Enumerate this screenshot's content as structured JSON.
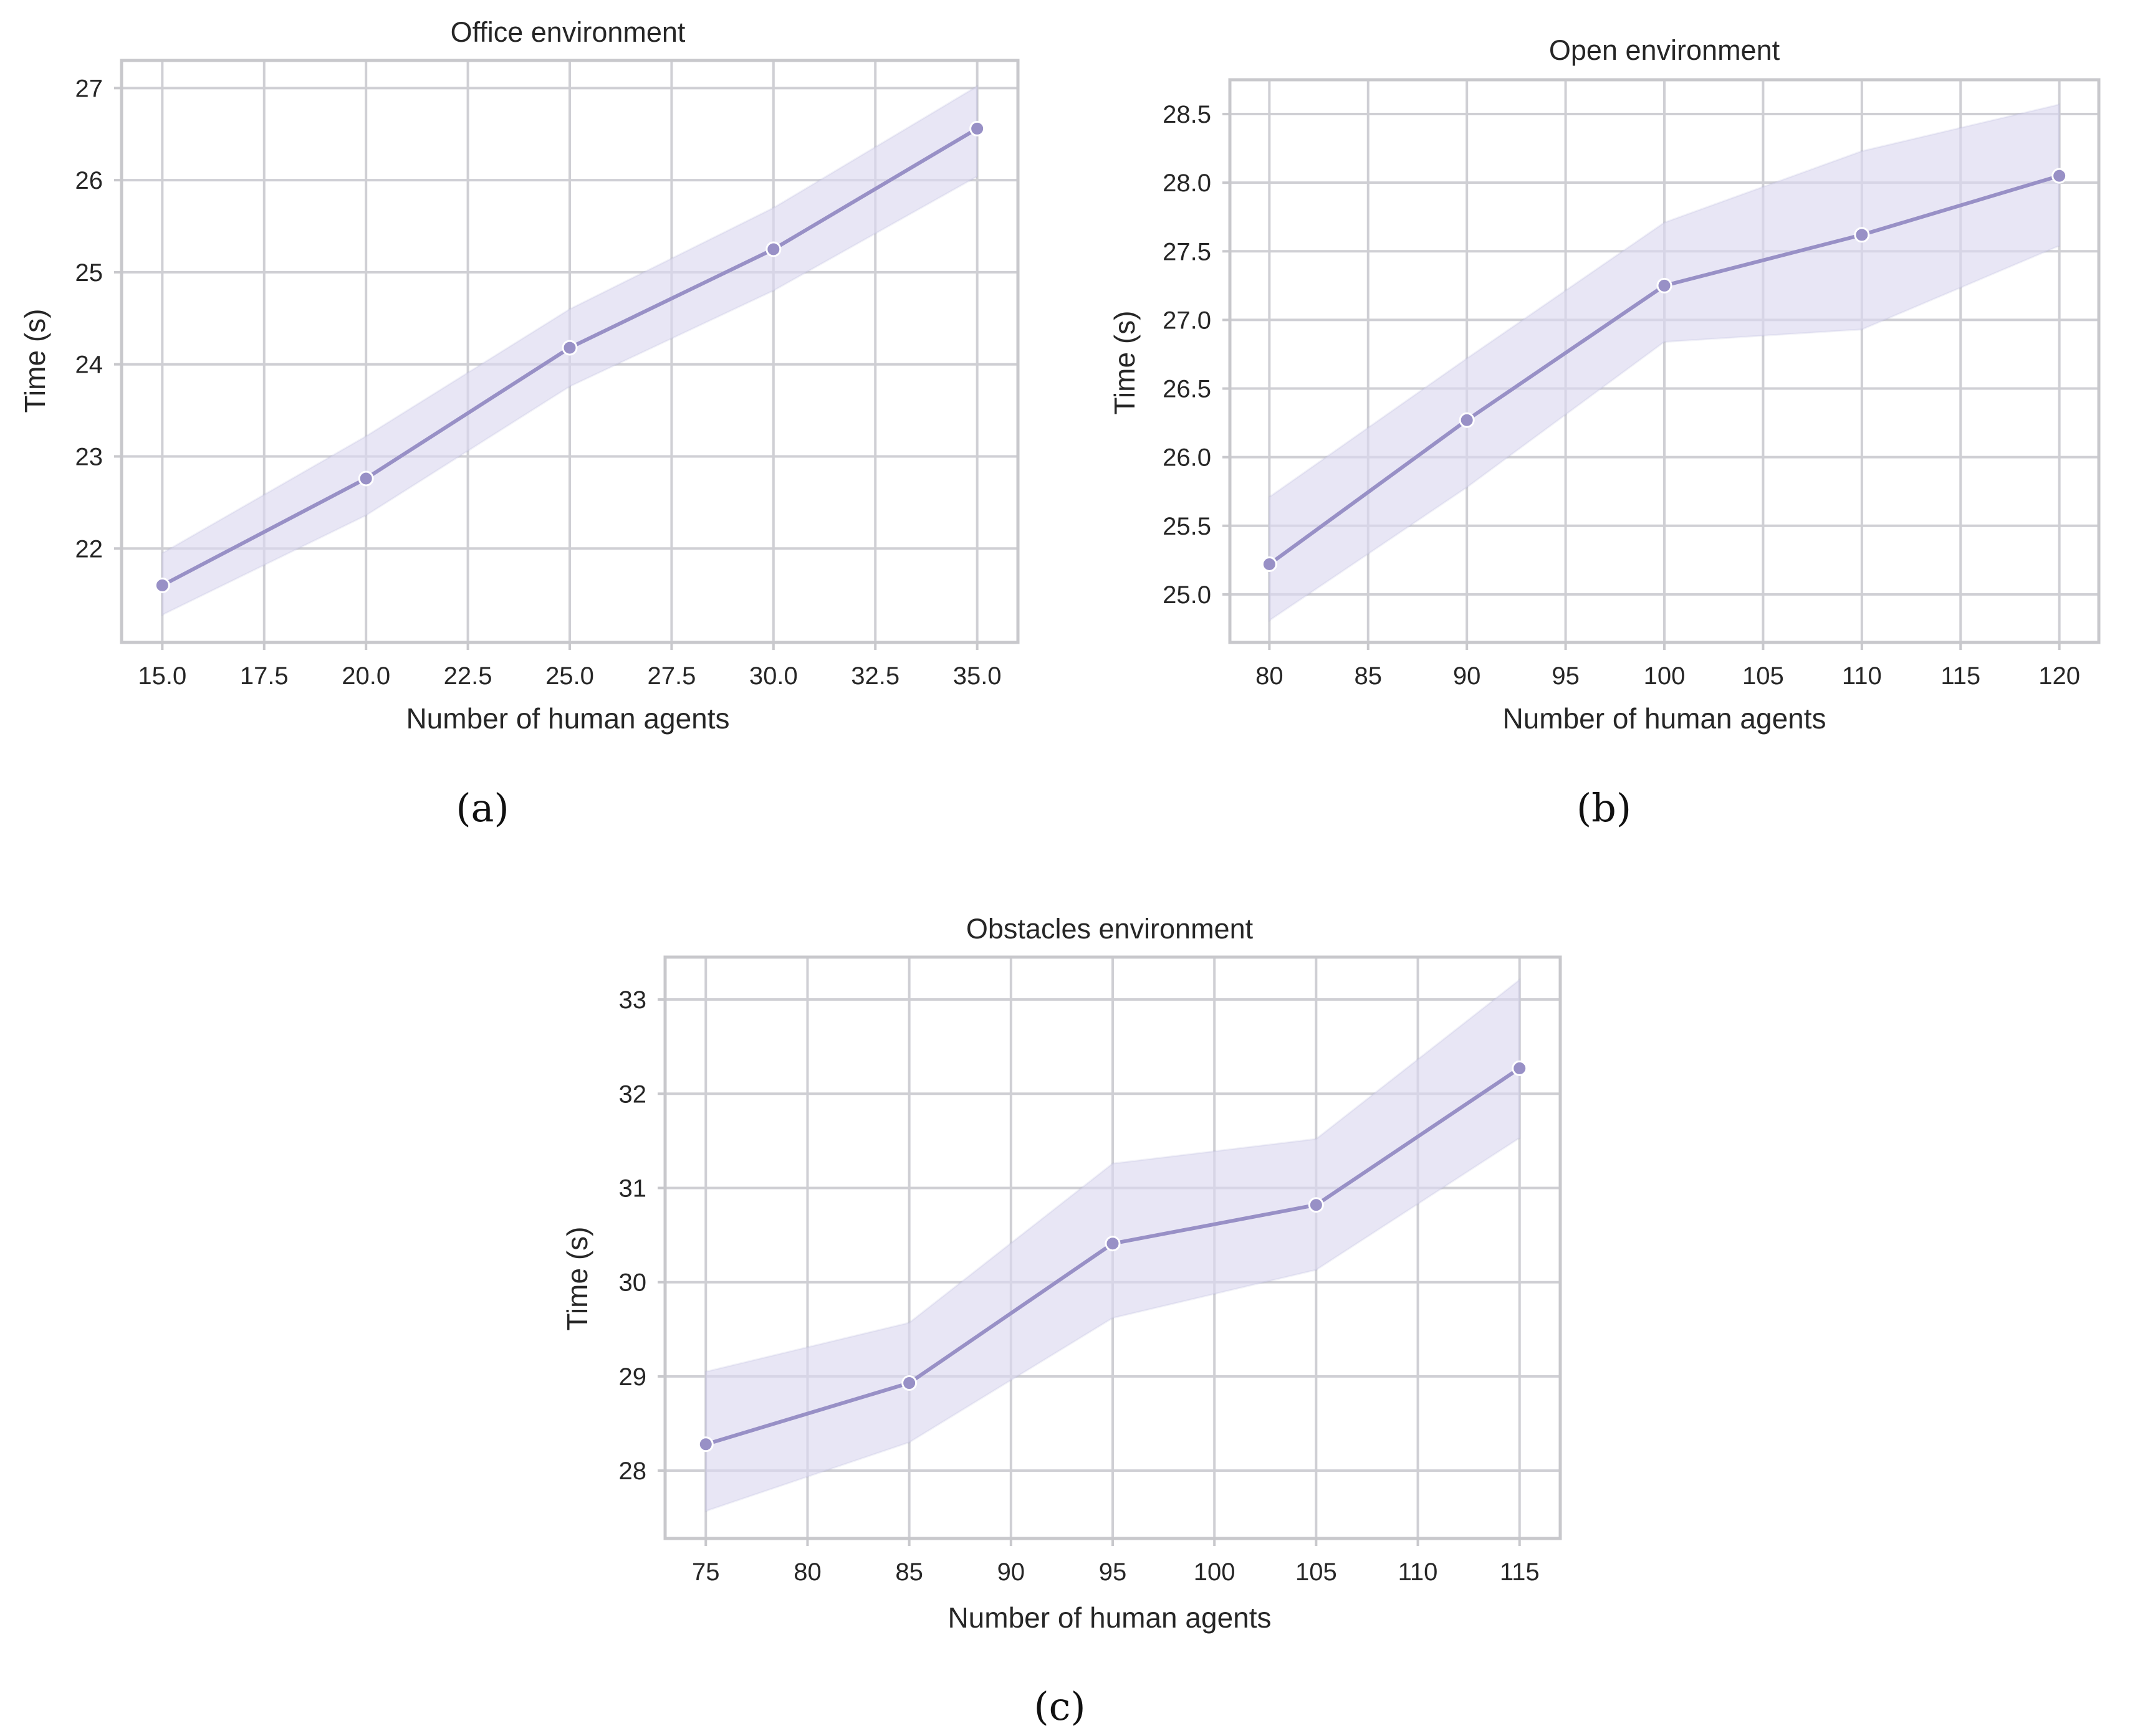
{
  "figure": {
    "colors": {
      "line": "#9890c6",
      "band": "#dcd9f0",
      "marker": "#9890c6",
      "marker_edge": "#ffffff"
    },
    "panels": [
      {
        "label": "(a)"
      },
      {
        "label": "(b)"
      },
      {
        "label": "(c)"
      }
    ]
  },
  "chart_data": [
    {
      "type": "line",
      "title": "Office environment",
      "xlabel": "Number of human agents",
      "ylabel": "Time (s)",
      "x": [
        15,
        20,
        25,
        30,
        35
      ],
      "y": [
        21.6,
        22.76,
        24.18,
        25.25,
        26.56
      ],
      "ci_lower": [
        21.28,
        22.36,
        23.76,
        24.8,
        26.04
      ],
      "ci_upper": [
        21.95,
        23.22,
        24.6,
        25.7,
        27.02
      ],
      "xlim": [
        14.0,
        36.0
      ],
      "ylim": [
        20.98,
        27.3
      ],
      "xticks": [
        15.0,
        17.5,
        20.0,
        22.5,
        25.0,
        27.5,
        30.0,
        32.5,
        35.0
      ],
      "xtick_labels": [
        "15.0",
        "17.5",
        "20.0",
        "22.5",
        "25.0",
        "27.5",
        "30.0",
        "32.5",
        "35.0"
      ],
      "yticks": [
        22,
        23,
        24,
        25,
        26,
        27
      ],
      "ytick_labels": [
        "22",
        "23",
        "24",
        "25",
        "26",
        "27"
      ],
      "grid": true
    },
    {
      "type": "line",
      "title": "Open environment",
      "xlabel": "Number of human agents",
      "ylabel": "Time (s)",
      "x": [
        80,
        90,
        100,
        110,
        120
      ],
      "y": [
        25.22,
        26.27,
        27.25,
        27.62,
        28.05
      ],
      "ci_lower": [
        24.81,
        25.78,
        26.84,
        26.93,
        27.54
      ],
      "ci_upper": [
        25.71,
        26.72,
        27.71,
        28.23,
        28.57
      ],
      "xlim": [
        78.0,
        122.0
      ],
      "ylim": [
        24.65,
        28.75
      ],
      "xticks": [
        80,
        85,
        90,
        95,
        100,
        105,
        110,
        115,
        120
      ],
      "xtick_labels": [
        "80",
        "85",
        "90",
        "95",
        "100",
        "105",
        "110",
        "115",
        "120"
      ],
      "yticks": [
        25.0,
        25.5,
        26.0,
        26.5,
        27.0,
        27.5,
        28.0,
        28.5
      ],
      "ytick_labels": [
        "25.0",
        "25.5",
        "26.0",
        "26.5",
        "27.0",
        "27.5",
        "28.0",
        "28.5"
      ],
      "grid": true
    },
    {
      "type": "line",
      "title": "Obstacles environment",
      "xlabel": "Number of human agents",
      "ylabel": "Time (s)",
      "x": [
        75,
        85,
        95,
        105,
        115
      ],
      "y": [
        28.28,
        28.93,
        30.41,
        30.82,
        32.27
      ],
      "ci_lower": [
        27.57,
        28.3,
        29.62,
        30.13,
        31.53
      ],
      "ci_upper": [
        29.05,
        29.57,
        31.26,
        31.52,
        33.21
      ],
      "xlim": [
        73.0,
        117.0
      ],
      "ylim": [
        27.28,
        33.45
      ],
      "xticks": [
        75,
        80,
        85,
        90,
        95,
        100,
        105,
        110,
        115
      ],
      "xtick_labels": [
        "75",
        "80",
        "85",
        "90",
        "95",
        "100",
        "105",
        "110",
        "115"
      ],
      "yticks": [
        28,
        29,
        30,
        31,
        32,
        33
      ],
      "ytick_labels": [
        "28",
        "29",
        "30",
        "31",
        "32",
        "33"
      ],
      "grid": true
    }
  ]
}
